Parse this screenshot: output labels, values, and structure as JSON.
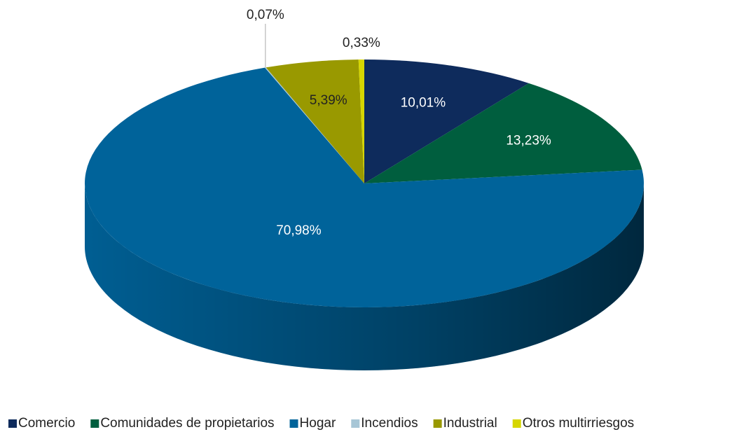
{
  "chart_data": {
    "type": "pie",
    "categories": [
      "Comercio",
      "Comunidades de propietarios",
      "Hogar",
      "Incendios",
      "Industrial",
      "Otros multirriesgos"
    ],
    "values": [
      10.01,
      13.23,
      70.98,
      0.07,
      5.39,
      0.33
    ],
    "value_labels": [
      "10,01%",
      "13,23%",
      "70,98%",
      "0,07%",
      "5,39%",
      "0,33%"
    ],
    "colors": [
      "#0e2b5c",
      "#005e3e",
      "#00639a",
      "#a7c6d6",
      "#999900",
      "#d6d600"
    ],
    "legend": "bottom"
  }
}
